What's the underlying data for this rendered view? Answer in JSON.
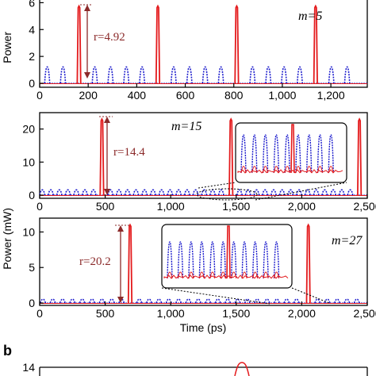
{
  "chart_data": [
    {
      "type": "line",
      "m_label": "m=5",
      "ratio_label": "r=4.92",
      "ylabel": "Power",
      "xlim": [
        0,
        1350
      ],
      "ylim": [
        0,
        6.2
      ],
      "x_ticks": [
        0,
        200,
        400,
        600,
        800,
        1000,
        1200
      ],
      "x_tick_labels": [
        "0",
        "200",
        "400",
        "600",
        "800",
        "1,000",
        "1,200"
      ],
      "y_ticks": [
        0,
        2,
        4,
        6
      ],
      "series": [
        {
          "style": "solid",
          "color": "#e41a1c",
          "peaks": [
            {
              "x": 162,
              "y": 5.75
            },
            {
              "x": 487,
              "y": 5.75
            },
            {
              "x": 812,
              "y": 5.75
            },
            {
              "x": 1137,
              "y": 5.75
            }
          ]
        },
        {
          "style": "dotted",
          "color": "#1a1acc",
          "peaks": [
            {
              "x": 31,
              "y": 1.22
            },
            {
              "x": 96,
              "y": 1.22
            },
            {
              "x": 227,
              "y": 1.22
            },
            {
              "x": 292,
              "y": 1.22
            },
            {
              "x": 357,
              "y": 1.22
            },
            {
              "x": 422,
              "y": 1.22
            },
            {
              "x": 552,
              "y": 1.22
            },
            {
              "x": 617,
              "y": 1.22
            },
            {
              "x": 682,
              "y": 1.22
            },
            {
              "x": 747,
              "y": 1.22
            },
            {
              "x": 877,
              "y": 1.22
            },
            {
              "x": 942,
              "y": 1.22
            },
            {
              "x": 1007,
              "y": 1.22
            },
            {
              "x": 1072,
              "y": 1.22
            },
            {
              "x": 1202,
              "y": 1.22
            },
            {
              "x": 1267,
              "y": 1.22
            }
          ]
        }
      ]
    },
    {
      "type": "line",
      "m_label": "m=15",
      "ratio_label": "r=14.4",
      "ylabel": "",
      "xlim": [
        0,
        2500
      ],
      "ylim": [
        0,
        24
      ],
      "x_ticks": [
        0,
        500,
        1000,
        1500,
        2000,
        2500
      ],
      "x_tick_labels": [
        "0",
        "500",
        "1,000",
        "1,500",
        "2,000",
        "2,500"
      ],
      "y_ticks": [
        0,
        10,
        20
      ],
      "series": [
        {
          "style": "solid",
          "color": "#e41a1c",
          "peaks": [
            {
              "x": 475,
              "y": 23.0
            },
            {
              "x": 1460,
              "y": 23.0
            },
            {
              "x": 2440,
              "y": 23.0
            }
          ]
        },
        {
          "style": "dotted",
          "color": "#1a1acc",
          "peaks": [
            {
              "x": 20,
              "y": 1.6
            },
            {
              "x": 85,
              "y": 1.6
            },
            {
              "x": 150,
              "y": 1.6
            },
            {
              "x": 215,
              "y": 1.6
            },
            {
              "x": 280,
              "y": 1.6
            },
            {
              "x": 345,
              "y": 1.6
            },
            {
              "x": 410,
              "y": 1.6
            },
            {
              "x": 540,
              "y": 1.6
            },
            {
              "x": 605,
              "y": 1.6
            },
            {
              "x": 670,
              "y": 1.6
            },
            {
              "x": 735,
              "y": 1.6
            },
            {
              "x": 800,
              "y": 1.6
            },
            {
              "x": 865,
              "y": 1.6
            },
            {
              "x": 930,
              "y": 1.6
            },
            {
              "x": 995,
              "y": 1.6
            },
            {
              "x": 1060,
              "y": 1.6
            },
            {
              "x": 1125,
              "y": 1.6
            },
            {
              "x": 1190,
              "y": 1.6
            },
            {
              "x": 1255,
              "y": 1.6
            },
            {
              "x": 1320,
              "y": 1.6
            },
            {
              "x": 1385,
              "y": 1.6
            },
            {
              "x": 1525,
              "y": 1.6
            },
            {
              "x": 1590,
              "y": 1.6
            },
            {
              "x": 1655,
              "y": 1.6
            },
            {
              "x": 1720,
              "y": 1.6
            },
            {
              "x": 1785,
              "y": 1.6
            },
            {
              "x": 1850,
              "y": 1.6
            },
            {
              "x": 1915,
              "y": 1.6
            },
            {
              "x": 1980,
              "y": 1.6
            },
            {
              "x": 2045,
              "y": 1.6
            },
            {
              "x": 2110,
              "y": 1.6
            },
            {
              "x": 2175,
              "y": 1.6
            },
            {
              "x": 2240,
              "y": 1.6
            },
            {
              "x": 2305,
              "y": 1.6
            },
            {
              "x": 2370,
              "y": 1.6
            }
          ]
        }
      ],
      "zoom_range": [
        1250,
        1650
      ]
    },
    {
      "type": "line",
      "m_label": "m=27",
      "ratio_label": "r=20.2",
      "ylabel": "Power (mW)",
      "xlabel": "Time (ps)",
      "xlim": [
        0,
        2500
      ],
      "ylim": [
        0,
        11.5
      ],
      "x_ticks": [
        0,
        500,
        1000,
        1500,
        2000,
        2500
      ],
      "x_tick_labels": [
        "0",
        "500",
        "1,000",
        "1,500",
        "2,000",
        "2,500"
      ],
      "y_ticks": [
        0,
        5,
        10
      ],
      "series": [
        {
          "style": "solid",
          "color": "#e41a1c",
          "peaks": [
            {
              "x": 690,
              "y": 11.0
            },
            {
              "x": 2050,
              "y": 11.0
            }
          ]
        },
        {
          "style": "dotted",
          "color": "#1a1acc",
          "peaks": [
            {
              "x": 25,
              "y": 0.55
            },
            {
              "x": 100,
              "y": 0.55
            },
            {
              "x": 175,
              "y": 0.55
            },
            {
              "x": 250,
              "y": 0.55
            },
            {
              "x": 325,
              "y": 0.55
            },
            {
              "x": 400,
              "y": 0.55
            },
            {
              "x": 475,
              "y": 0.55
            },
            {
              "x": 550,
              "y": 0.55
            },
            {
              "x": 625,
              "y": 0.55
            },
            {
              "x": 760,
              "y": 0.55
            },
            {
              "x": 835,
              "y": 0.55
            },
            {
              "x": 910,
              "y": 0.55
            },
            {
              "x": 985,
              "y": 0.55
            },
            {
              "x": 1060,
              "y": 0.55
            },
            {
              "x": 1135,
              "y": 0.55
            },
            {
              "x": 1210,
              "y": 0.55
            },
            {
              "x": 1285,
              "y": 0.55
            },
            {
              "x": 1360,
              "y": 0.55
            },
            {
              "x": 1435,
              "y": 0.55
            },
            {
              "x": 1510,
              "y": 0.55
            },
            {
              "x": 1585,
              "y": 0.55
            },
            {
              "x": 1660,
              "y": 0.55
            },
            {
              "x": 1735,
              "y": 0.55
            },
            {
              "x": 1810,
              "y": 0.55
            },
            {
              "x": 1885,
              "y": 0.55
            },
            {
              "x": 1960,
              "y": 0.55
            },
            {
              "x": 2120,
              "y": 0.55
            },
            {
              "x": 2195,
              "y": 0.55
            },
            {
              "x": 2270,
              "y": 0.55
            },
            {
              "x": 2345,
              "y": 0.55
            },
            {
              "x": 2420,
              "y": 0.55
            }
          ]
        }
      ],
      "zoom_range": [
        1800,
        2300
      ]
    },
    {
      "type": "line",
      "panel_letter": "b",
      "y_tick_labels": [
        "14"
      ]
    }
  ],
  "colors": {
    "red": "#e41a1c",
    "blue": "#1a1acc",
    "ratio_arrow": "#8b2a2a"
  }
}
